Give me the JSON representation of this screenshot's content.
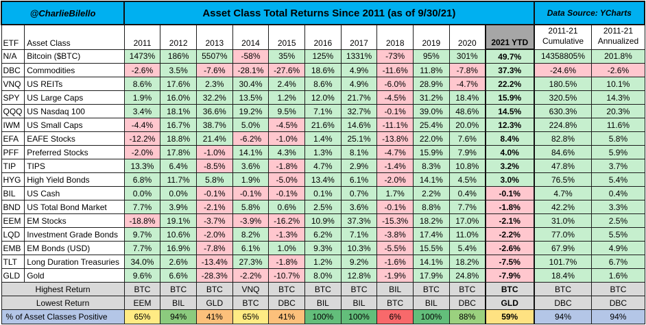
{
  "title": {
    "handle": "@CharlieBilello",
    "main": "Asset Class Total Returns Since 2011 (as of 9/30/21)",
    "source": "Data Source: YCharts"
  },
  "headers": {
    "etf": "ETF",
    "asset": "Asset Class",
    "years": [
      "2011",
      "2012",
      "2013",
      "2014",
      "2015",
      "2016",
      "2017",
      "2018",
      "2019",
      "2020"
    ],
    "ytd": "2021 YTD",
    "cum_line1": "2011-21",
    "cum_line2": "Cumulative",
    "ann_line1": "2011-21",
    "ann_line2": "Annualized"
  },
  "rows": [
    {
      "etf": "N/A",
      "asset": "Bitcoin ($BTC)",
      "values": [
        "1473%",
        "186%",
        "5507%",
        "-58%",
        "35%",
        "125%",
        "1331%",
        "-73%",
        "95%",
        "301%"
      ],
      "ytd": "49.7%",
      "cum": "14358805%",
      "ann": "201.8%"
    },
    {
      "etf": "DBC",
      "asset": "Commodities",
      "values": [
        "-2.6%",
        "3.5%",
        "-7.6%",
        "-28.1%",
        "-27.6%",
        "18.6%",
        "4.9%",
        "-11.6%",
        "11.8%",
        "-7.8%"
      ],
      "ytd": "37.3%",
      "cum": "-24.6%",
      "ann": "-2.6%"
    },
    {
      "etf": "VNQ",
      "asset": "US REITs",
      "values": [
        "8.6%",
        "17.6%",
        "2.3%",
        "30.4%",
        "2.4%",
        "8.6%",
        "4.9%",
        "-6.0%",
        "28.9%",
        "-4.7%"
      ],
      "ytd": "22.2%",
      "cum": "180.5%",
      "ann": "10.1%"
    },
    {
      "etf": "SPY",
      "asset": "US Large Caps",
      "values": [
        "1.9%",
        "16.0%",
        "32.2%",
        "13.5%",
        "1.2%",
        "12.0%",
        "21.7%",
        "-4.5%",
        "31.2%",
        "18.4%"
      ],
      "ytd": "15.9%",
      "cum": "320.5%",
      "ann": "14.3%"
    },
    {
      "etf": "QQQ",
      "asset": "US Nasdaq 100",
      "values": [
        "3.4%",
        "18.1%",
        "36.6%",
        "19.2%",
        "9.5%",
        "7.1%",
        "32.7%",
        "-0.1%",
        "39.0%",
        "48.6%"
      ],
      "ytd": "14.5%",
      "cum": "630.3%",
      "ann": "20.3%"
    },
    {
      "etf": "IWM",
      "asset": "US Small Caps",
      "values": [
        "-4.4%",
        "16.7%",
        "38.7%",
        "5.0%",
        "-4.5%",
        "21.6%",
        "14.6%",
        "-11.1%",
        "25.4%",
        "20.0%"
      ],
      "ytd": "12.3%",
      "cum": "224.8%",
      "ann": "11.6%"
    },
    {
      "etf": "EFA",
      "asset": "EAFE Stocks",
      "values": [
        "-12.2%",
        "18.8%",
        "21.4%",
        "-6.2%",
        "-1.0%",
        "1.4%",
        "25.1%",
        "-13.8%",
        "22.0%",
        "7.6%"
      ],
      "ytd": "8.4%",
      "cum": "82.8%",
      "ann": "5.8%"
    },
    {
      "etf": "PFF",
      "asset": "Preferred Stocks",
      "values": [
        "-2.0%",
        "17.8%",
        "-1.0%",
        "14.1%",
        "4.3%",
        "1.3%",
        "8.1%",
        "-4.7%",
        "15.9%",
        "7.9%"
      ],
      "ytd": "4.0%",
      "cum": "84.6%",
      "ann": "5.9%"
    },
    {
      "etf": "TIP",
      "asset": "TIPS",
      "values": [
        "13.3%",
        "6.4%",
        "-8.5%",
        "3.6%",
        "-1.8%",
        "4.7%",
        "2.9%",
        "-1.4%",
        "8.3%",
        "10.8%"
      ],
      "ytd": "3.2%",
      "cum": "47.8%",
      "ann": "3.7%"
    },
    {
      "etf": "HYG",
      "asset": "High Yield Bonds",
      "values": [
        "6.8%",
        "11.7%",
        "5.8%",
        "1.9%",
        "-5.0%",
        "13.4%",
        "6.1%",
        "-2.0%",
        "14.1%",
        "4.5%"
      ],
      "ytd": "3.0%",
      "cum": "76.5%",
      "ann": "5.4%"
    },
    {
      "etf": "BIL",
      "asset": "US Cash",
      "values": [
        "0.0%",
        "0.0%",
        "-0.1%",
        "-0.1%",
        "-0.1%",
        "0.1%",
        "0.7%",
        "1.7%",
        "2.2%",
        "0.4%"
      ],
      "ytd": "-0.1%",
      "cum": "4.7%",
      "ann": "0.4%"
    },
    {
      "etf": "BND",
      "asset": "US Total Bond Market",
      "values": [
        "7.7%",
        "3.9%",
        "-2.1%",
        "5.8%",
        "0.6%",
        "2.5%",
        "3.6%",
        "-0.1%",
        "8.8%",
        "7.7%"
      ],
      "ytd": "-1.8%",
      "cum": "42.2%",
      "ann": "3.3%"
    },
    {
      "etf": "EEM",
      "asset": "EM Stocks",
      "values": [
        "-18.8%",
        "19.1%",
        "-3.7%",
        "-3.9%",
        "-16.2%",
        "10.9%",
        "37.3%",
        "-15.3%",
        "18.2%",
        "17.0%"
      ],
      "ytd": "-2.1%",
      "cum": "31.0%",
      "ann": "2.5%"
    },
    {
      "etf": "LQD",
      "asset": "Investment Grade Bonds",
      "values": [
        "9.7%",
        "10.6%",
        "-2.0%",
        "8.2%",
        "-1.3%",
        "6.2%",
        "7.1%",
        "-3.8%",
        "17.4%",
        "11.0%"
      ],
      "ytd": "-2.2%",
      "cum": "77.0%",
      "ann": "5.5%"
    },
    {
      "etf": "EMB",
      "asset": "EM Bonds (USD)",
      "values": [
        "7.7%",
        "16.9%",
        "-7.8%",
        "6.1%",
        "1.0%",
        "9.3%",
        "10.3%",
        "-5.5%",
        "15.5%",
        "5.4%"
      ],
      "ytd": "-2.6%",
      "cum": "67.9%",
      "ann": "4.9%"
    },
    {
      "etf": "TLT",
      "asset": "Long Duration Treasuries",
      "values": [
        "34.0%",
        "2.6%",
        "-13.4%",
        "27.3%",
        "-1.8%",
        "1.2%",
        "9.2%",
        "-1.6%",
        "14.1%",
        "18.2%"
      ],
      "ytd": "-7.5%",
      "cum": "101.7%",
      "ann": "6.7%"
    },
    {
      "etf": "GLD",
      "asset": "Gold",
      "values": [
        "9.6%",
        "6.6%",
        "-28.3%",
        "-2.2%",
        "-10.7%",
        "8.0%",
        "12.8%",
        "-1.9%",
        "17.9%",
        "24.8%"
      ],
      "ytd": "-7.9%",
      "cum": "18.4%",
      "ann": "1.6%"
    }
  ],
  "summary": {
    "highest_label": "Highest Return",
    "highest": [
      "BTC",
      "BTC",
      "BTC",
      "VNQ",
      "BTC",
      "BTC",
      "BTC",
      "BIL",
      "BTC",
      "BTC"
    ],
    "highest_ytd": "BTC",
    "highest_cum": "BTC",
    "highest_ann": "BTC",
    "lowest_label": "Lowest Return",
    "lowest": [
      "EEM",
      "BIL",
      "GLD",
      "BTC",
      "DBC",
      "BIL",
      "BIL",
      "BTC",
      "BIL",
      "DBC"
    ],
    "lowest_ytd": "GLD",
    "lowest_cum": "DBC",
    "lowest_ann": "DBC",
    "positive_label": "% of Asset Classes Positive",
    "positive": [
      "65%",
      "94%",
      "41%",
      "65%",
      "41%",
      "100%",
      "100%",
      "6%",
      "100%",
      "88%"
    ],
    "positive_ytd": "59%",
    "positive_cum": "94%",
    "positive_ann": "94%",
    "positive_colors": [
      "#ffeb84",
      "#8ccb7e",
      "#fcc07b",
      "#ffeb84",
      "#fcc07b",
      "#63be7b",
      "#63be7b",
      "#f8696b",
      "#63be7b",
      "#9bd17f",
      "#fee282",
      "#b4c6e7",
      "#b4c6e7"
    ]
  },
  "colors": {
    "title_bg": "#00b0f0",
    "positive": "#c6efce",
    "negative": "#ffc7ce",
    "summary_bg": "#d9d9d9",
    "ytd_header_bg": "#a6a6a6"
  }
}
